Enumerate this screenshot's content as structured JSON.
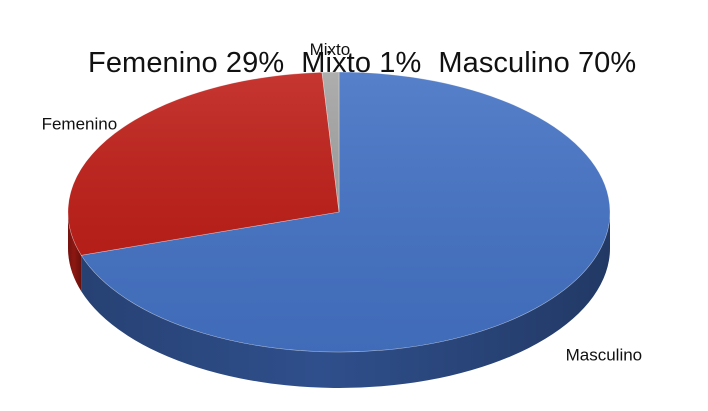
{
  "chart_data": {
    "type": "pie",
    "title_parts": [
      {
        "category": "Femenino",
        "text": "Femenino 29%"
      },
      {
        "category": "Mixto",
        "text": "Mixto 1%"
      },
      {
        "category": "Masculino",
        "text": "Masculino 70%"
      }
    ],
    "categories": [
      "Masculino",
      "Femenino",
      "Mixto"
    ],
    "values": [
      70,
      29,
      1
    ],
    "unit": "%",
    "colors": [
      "#4472C4",
      "#C0201A",
      "#A5A5A5"
    ],
    "side_colors": [
      "#2F4F8C",
      "#8E1712",
      "#7F7F7F"
    ],
    "style": "3d-pie",
    "legend": "none",
    "data_labels": "category-name-outside"
  }
}
